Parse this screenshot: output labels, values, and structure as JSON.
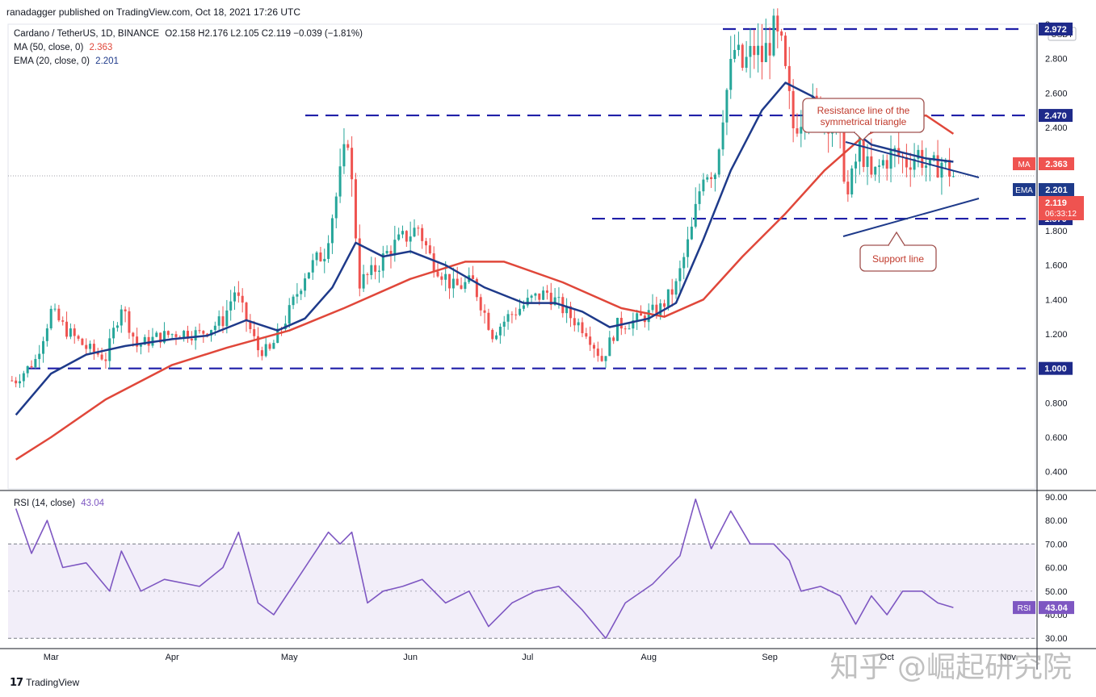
{
  "header": {
    "published": "ranadagger published on TradingView.com, Oct 18, 2021 17:26 UTC"
  },
  "legend": {
    "symbol_line": "Cardano / TetherUS, 1D, BINANCE",
    "ohlc": "O2.158  H2.176  L2.105  C2.119  −0.039 (−1.81%)",
    "ma_label": "MA (50, close, 0)",
    "ma_value": "2.363",
    "ema_label": "EMA (20, close, 0)",
    "ema_value": "2.201",
    "rsi_label": "RSI (14, close)",
    "rsi_value": "43.04"
  },
  "colors": {
    "up": "#26a69a",
    "down": "#ef5350",
    "ema": "#1e3a8a",
    "ma": "#e0473a",
    "level": "#1f1fa8",
    "rsi": "#7e57c2",
    "annotation_border": "#a0524f",
    "annotation_text": "#c0392b"
  },
  "footer": {
    "brand": "TradingView"
  },
  "watermark": "知乎 @崛起研究院",
  "chart_data": {
    "type": "candlestick",
    "currency_label": "USDT",
    "price_axis": {
      "ylim": [
        0.3,
        3.0
      ],
      "ticks": [
        "0.400",
        "0.600",
        "0.800",
        "1.000",
        "1.200",
        "1.400",
        "1.600",
        "1.800",
        "2.000",
        "2.200",
        "2.400",
        "2.600",
        "2.800",
        "3"
      ]
    },
    "rsi_axis": {
      "ylim": [
        27,
        92
      ],
      "ticks": [
        "30.00",
        "40.00",
        "50.00",
        "60.00",
        "70.00",
        "80.00",
        "90.00"
      ],
      "bands": [
        30,
        70
      ]
    },
    "x_labels": [
      "Mar",
      "Apr",
      "May",
      "Jun",
      "Jul",
      "Aug",
      "Sep",
      "Oct",
      "Nov"
    ],
    "horizontal_levels": [
      {
        "value": 2.972,
        "label": "2.972"
      },
      {
        "value": 2.47,
        "label": "2.470"
      },
      {
        "value": 1.87,
        "label": "1.870"
      },
      {
        "value": 1.0,
        "label": "1.000"
      }
    ],
    "axis_badges": [
      {
        "name": "MA",
        "value": "2.363"
      },
      {
        "name": "EMA",
        "value": "2.201"
      },
      {
        "name": "",
        "value": "2.119"
      },
      {
        "name": "",
        "value": "06:33:12"
      },
      {
        "name": "RSI",
        "value": "43.04"
      }
    ],
    "annotations": [
      {
        "text": "Resistance line of the symmetrical triangle"
      },
      {
        "text": "Support line"
      }
    ],
    "close_series": [
      {
        "date": "2021-02-20",
        "v": 0.93
      },
      {
        "date": "2021-02-25",
        "v": 1.05
      },
      {
        "date": "2021-03-01",
        "v": 1.33
      },
      {
        "date": "2021-03-05",
        "v": 1.22
      },
      {
        "date": "2021-03-10",
        "v": 1.12
      },
      {
        "date": "2021-03-15",
        "v": 1.06
      },
      {
        "date": "2021-03-19",
        "v": 1.37
      },
      {
        "date": "2021-03-23",
        "v": 1.13
      },
      {
        "date": "2021-03-28",
        "v": 1.18
      },
      {
        "date": "2021-04-03",
        "v": 1.21
      },
      {
        "date": "2021-04-08",
        "v": 1.2
      },
      {
        "date": "2021-04-14",
        "v": 1.28
      },
      {
        "date": "2021-04-17",
        "v": 1.45
      },
      {
        "date": "2021-04-23",
        "v": 1.11
      },
      {
        "date": "2021-04-26",
        "v": 1.1
      },
      {
        "date": "2021-05-01",
        "v": 1.33
      },
      {
        "date": "2021-05-05",
        "v": 1.55
      },
      {
        "date": "2021-05-10",
        "v": 1.68
      },
      {
        "date": "2021-05-13",
        "v": 2.0
      },
      {
        "date": "2021-05-16",
        "v": 2.35
      },
      {
        "date": "2021-05-19",
        "v": 1.5
      },
      {
        "date": "2021-05-22",
        "v": 1.55
      },
      {
        "date": "2021-05-27",
        "v": 1.7
      },
      {
        "date": "2021-06-03",
        "v": 1.82
      },
      {
        "date": "2021-06-06",
        "v": 1.65
      },
      {
        "date": "2021-06-12",
        "v": 1.47
      },
      {
        "date": "2021-06-17",
        "v": 1.5
      },
      {
        "date": "2021-06-22",
        "v": 1.2
      },
      {
        "date": "2021-06-26",
        "v": 1.3
      },
      {
        "date": "2021-07-02",
        "v": 1.4
      },
      {
        "date": "2021-07-06",
        "v": 1.44
      },
      {
        "date": "2021-07-12",
        "v": 1.3
      },
      {
        "date": "2021-07-16",
        "v": 1.22
      },
      {
        "date": "2021-07-20",
        "v": 1.05
      },
      {
        "date": "2021-07-24",
        "v": 1.25
      },
      {
        "date": "2021-07-29",
        "v": 1.28
      },
      {
        "date": "2021-08-04",
        "v": 1.35
      },
      {
        "date": "2021-08-08",
        "v": 1.48
      },
      {
        "date": "2021-08-12",
        "v": 1.8
      },
      {
        "date": "2021-08-15",
        "v": 2.15
      },
      {
        "date": "2021-08-18",
        "v": 2.15
      },
      {
        "date": "2021-08-20",
        "v": 2.5
      },
      {
        "date": "2021-08-23",
        "v": 2.85
      },
      {
        "date": "2021-08-25",
        "v": 2.75
      },
      {
        "date": "2021-08-28",
        "v": 2.85
      },
      {
        "date": "2021-08-30",
        "v": 2.8
      },
      {
        "date": "2021-09-02",
        "v": 2.95
      },
      {
        "date": "2021-09-04",
        "v": 2.85
      },
      {
        "date": "2021-09-07",
        "v": 2.4
      },
      {
        "date": "2021-09-10",
        "v": 2.5
      },
      {
        "date": "2021-09-13",
        "v": 2.52
      },
      {
        "date": "2021-09-16",
        "v": 2.45
      },
      {
        "date": "2021-09-19",
        "v": 2.3
      },
      {
        "date": "2021-09-21",
        "v": 2.0
      },
      {
        "date": "2021-09-24",
        "v": 2.3
      },
      {
        "date": "2021-09-27",
        "v": 2.1
      },
      {
        "date": "2021-09-30",
        "v": 2.2
      },
      {
        "date": "2021-10-03",
        "v": 2.25
      },
      {
        "date": "2021-10-06",
        "v": 2.2
      },
      {
        "date": "2021-10-09",
        "v": 2.25
      },
      {
        "date": "2021-10-12",
        "v": 2.15
      },
      {
        "date": "2021-10-15",
        "v": 2.2
      },
      {
        "date": "2021-10-18",
        "v": 2.119
      }
    ],
    "ema20": [
      {
        "date": "2021-02-20",
        "v": 0.73
      },
      {
        "date": "2021-03-01",
        "v": 0.97
      },
      {
        "date": "2021-03-10",
        "v": 1.08
      },
      {
        "date": "2021-03-20",
        "v": 1.13
      },
      {
        "date": "2021-04-01",
        "v": 1.17
      },
      {
        "date": "2021-04-10",
        "v": 1.19
      },
      {
        "date": "2021-04-20",
        "v": 1.28
      },
      {
        "date": "2021-04-28",
        "v": 1.22
      },
      {
        "date": "2021-05-05",
        "v": 1.29
      },
      {
        "date": "2021-05-12",
        "v": 1.47
      },
      {
        "date": "2021-05-18",
        "v": 1.73
      },
      {
        "date": "2021-05-25",
        "v": 1.65
      },
      {
        "date": "2021-06-01",
        "v": 1.68
      },
      {
        "date": "2021-06-10",
        "v": 1.6
      },
      {
        "date": "2021-06-20",
        "v": 1.47
      },
      {
        "date": "2021-06-30",
        "v": 1.38
      },
      {
        "date": "2021-07-08",
        "v": 1.38
      },
      {
        "date": "2021-07-15",
        "v": 1.33
      },
      {
        "date": "2021-07-22",
        "v": 1.24
      },
      {
        "date": "2021-08-01",
        "v": 1.29
      },
      {
        "date": "2021-08-08",
        "v": 1.38
      },
      {
        "date": "2021-08-15",
        "v": 1.75
      },
      {
        "date": "2021-08-22",
        "v": 2.15
      },
      {
        "date": "2021-08-30",
        "v": 2.5
      },
      {
        "date": "2021-09-05",
        "v": 2.66
      },
      {
        "date": "2021-09-12",
        "v": 2.58
      },
      {
        "date": "2021-09-20",
        "v": 2.42
      },
      {
        "date": "2021-09-27",
        "v": 2.3
      },
      {
        "date": "2021-10-04",
        "v": 2.26
      },
      {
        "date": "2021-10-11",
        "v": 2.22
      },
      {
        "date": "2021-10-18",
        "v": 2.201
      }
    ],
    "ma50": [
      {
        "date": "2021-02-20",
        "v": 0.47
      },
      {
        "date": "2021-03-01",
        "v": 0.6
      },
      {
        "date": "2021-03-15",
        "v": 0.82
      },
      {
        "date": "2021-04-01",
        "v": 1.02
      },
      {
        "date": "2021-04-15",
        "v": 1.12
      },
      {
        "date": "2021-05-01",
        "v": 1.22
      },
      {
        "date": "2021-05-15",
        "v": 1.35
      },
      {
        "date": "2021-06-01",
        "v": 1.52
      },
      {
        "date": "2021-06-15",
        "v": 1.62
      },
      {
        "date": "2021-06-25",
        "v": 1.62
      },
      {
        "date": "2021-07-10",
        "v": 1.5
      },
      {
        "date": "2021-07-25",
        "v": 1.35
      },
      {
        "date": "2021-08-05",
        "v": 1.3
      },
      {
        "date": "2021-08-15",
        "v": 1.4
      },
      {
        "date": "2021-08-25",
        "v": 1.65
      },
      {
        "date": "2021-09-05",
        "v": 1.9
      },
      {
        "date": "2021-09-15",
        "v": 2.15
      },
      {
        "date": "2021-09-25",
        "v": 2.35
      },
      {
        "date": "2021-10-05",
        "v": 2.45
      },
      {
        "date": "2021-10-11",
        "v": 2.47
      },
      {
        "date": "2021-10-18",
        "v": 2.363
      }
    ],
    "rsi14": [
      {
        "date": "2021-02-20",
        "v": 85
      },
      {
        "date": "2021-02-24",
        "v": 66
      },
      {
        "date": "2021-02-28",
        "v": 80
      },
      {
        "date": "2021-03-04",
        "v": 60
      },
      {
        "date": "2021-03-10",
        "v": 62
      },
      {
        "date": "2021-03-16",
        "v": 50
      },
      {
        "date": "2021-03-19",
        "v": 67
      },
      {
        "date": "2021-03-24",
        "v": 50
      },
      {
        "date": "2021-03-30",
        "v": 55
      },
      {
        "date": "2021-04-08",
        "v": 52
      },
      {
        "date": "2021-04-14",
        "v": 60
      },
      {
        "date": "2021-04-18",
        "v": 75
      },
      {
        "date": "2021-04-23",
        "v": 45
      },
      {
        "date": "2021-04-27",
        "v": 40
      },
      {
        "date": "2021-05-03",
        "v": 55
      },
      {
        "date": "2021-05-07",
        "v": 65
      },
      {
        "date": "2021-05-11",
        "v": 75
      },
      {
        "date": "2021-05-14",
        "v": 70
      },
      {
        "date": "2021-05-17",
        "v": 75
      },
      {
        "date": "2021-05-21",
        "v": 45
      },
      {
        "date": "2021-05-25",
        "v": 50
      },
      {
        "date": "2021-05-30",
        "v": 52
      },
      {
        "date": "2021-06-04",
        "v": 55
      },
      {
        "date": "2021-06-10",
        "v": 45
      },
      {
        "date": "2021-06-16",
        "v": 50
      },
      {
        "date": "2021-06-21",
        "v": 35
      },
      {
        "date": "2021-06-27",
        "v": 45
      },
      {
        "date": "2021-07-03",
        "v": 50
      },
      {
        "date": "2021-07-09",
        "v": 52
      },
      {
        "date": "2021-07-15",
        "v": 42
      },
      {
        "date": "2021-07-21",
        "v": 30
      },
      {
        "date": "2021-07-26",
        "v": 45
      },
      {
        "date": "2021-08-02",
        "v": 53
      },
      {
        "date": "2021-08-09",
        "v": 65
      },
      {
        "date": "2021-08-13",
        "v": 89
      },
      {
        "date": "2021-08-17",
        "v": 68
      },
      {
        "date": "2021-08-22",
        "v": 84
      },
      {
        "date": "2021-08-27",
        "v": 70
      },
      {
        "date": "2021-09-02",
        "v": 70
      },
      {
        "date": "2021-09-06",
        "v": 63
      },
      {
        "date": "2021-09-09",
        "v": 50
      },
      {
        "date": "2021-09-14",
        "v": 52
      },
      {
        "date": "2021-09-19",
        "v": 48
      },
      {
        "date": "2021-09-23",
        "v": 36
      },
      {
        "date": "2021-09-27",
        "v": 48
      },
      {
        "date": "2021-10-01",
        "v": 40
      },
      {
        "date": "2021-10-05",
        "v": 50
      },
      {
        "date": "2021-10-10",
        "v": 50
      },
      {
        "date": "2021-10-14",
        "v": 45
      },
      {
        "date": "2021-10-18",
        "v": 43.04
      }
    ]
  }
}
